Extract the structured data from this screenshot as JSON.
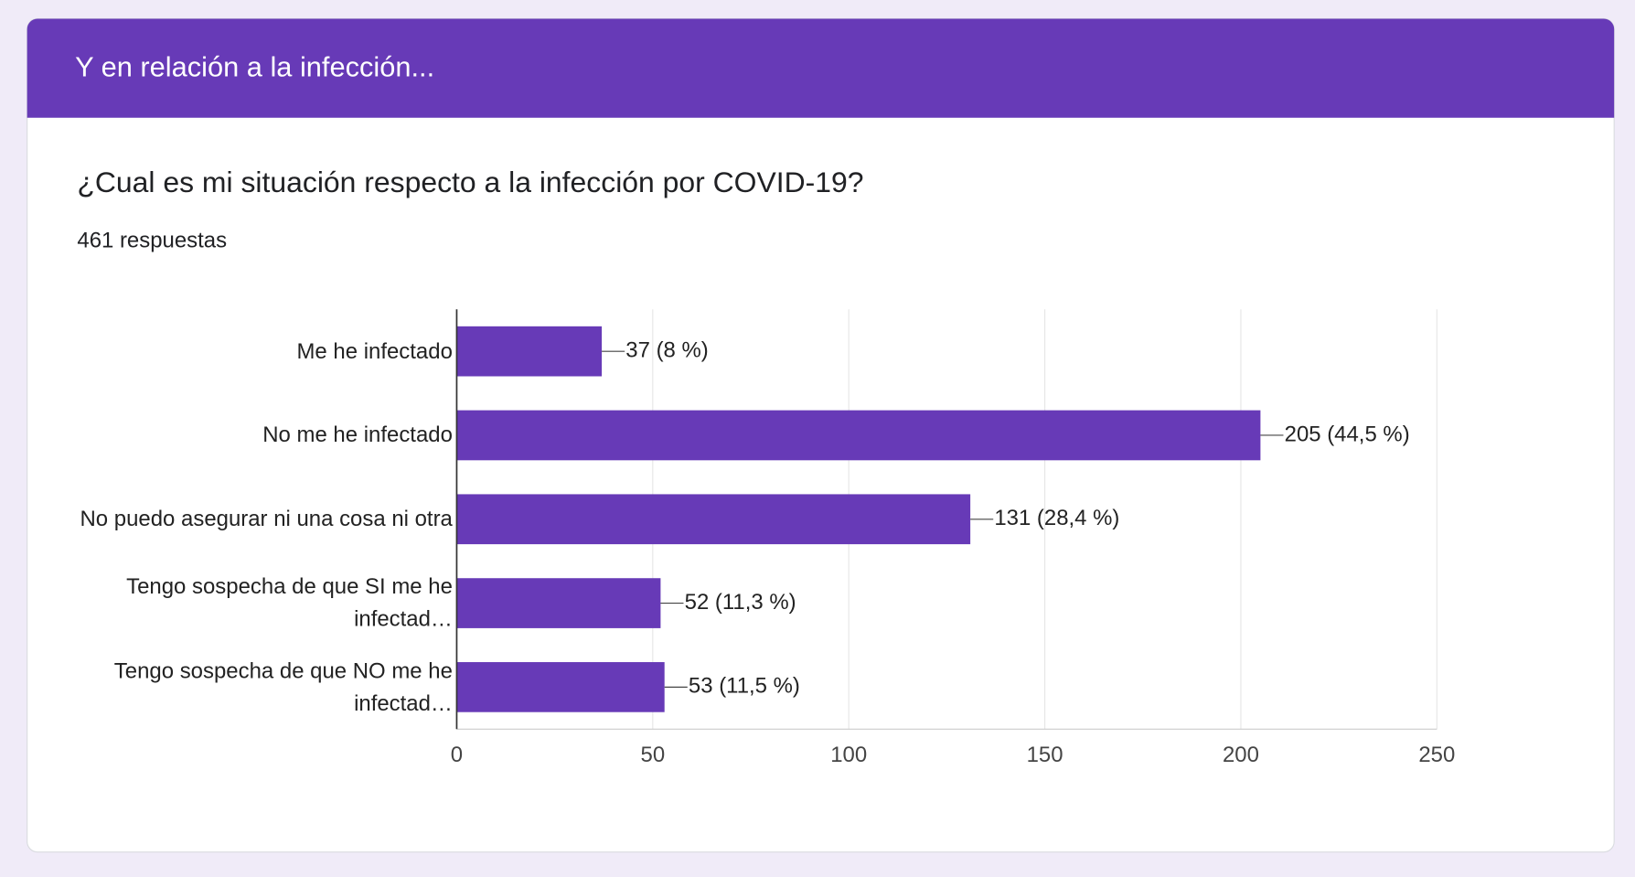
{
  "header": {
    "title": "Y en relación a la infección..."
  },
  "question": {
    "title": "¿Cual es mi situación respecto a la infección por COVID-19?",
    "responses": "461 respuestas"
  },
  "chart_data": {
    "type": "bar",
    "orientation": "horizontal",
    "categories": [
      "Me he infectado",
      "No me he infectado",
      "No puedo asegurar ni una cosa ni otra",
      "Tengo sospecha de que SI me he infectad…",
      "Tengo sospecha de que NO me he infectad…"
    ],
    "values": [
      37,
      205,
      131,
      52,
      53
    ],
    "value_labels": [
      "37 (8 %)",
      "205 (44,5 %)",
      "131 (28,4 %)",
      "52 (11,3 %)",
      "53 (11,5 %)"
    ],
    "color": "#673ab7",
    "xlim": [
      0,
      250
    ],
    "xticks": [
      0,
      50,
      100,
      150,
      200,
      250
    ],
    "grid": true
  }
}
